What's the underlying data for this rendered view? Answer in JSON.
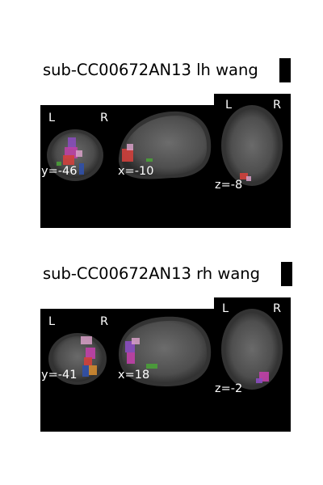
{
  "panels": [
    {
      "title": "sub-CC00672AN13 lh wang",
      "orientation": {
        "left": "L",
        "right": "R"
      },
      "cuts": {
        "coronal": "y=-46",
        "sagittal": "x=-10",
        "axial": "z=-8"
      }
    },
    {
      "title": "sub-CC00672AN13 rh wang",
      "orientation": {
        "left": "L",
        "right": "R"
      },
      "cuts": {
        "coronal": "y=-41",
        "sagittal": "x=18",
        "axial": "z=-2"
      }
    }
  ],
  "colors": {
    "background": "#000000",
    "brain": "#5a5a5a",
    "atlas_red": "#d0403c",
    "atlas_purple": "#8a4cc0",
    "atlas_magenta": "#c040a8",
    "atlas_pink": "#d8a0c8",
    "atlas_green": "#4aa038",
    "atlas_blue": "#3050a8",
    "atlas_orange": "#d08a30"
  }
}
